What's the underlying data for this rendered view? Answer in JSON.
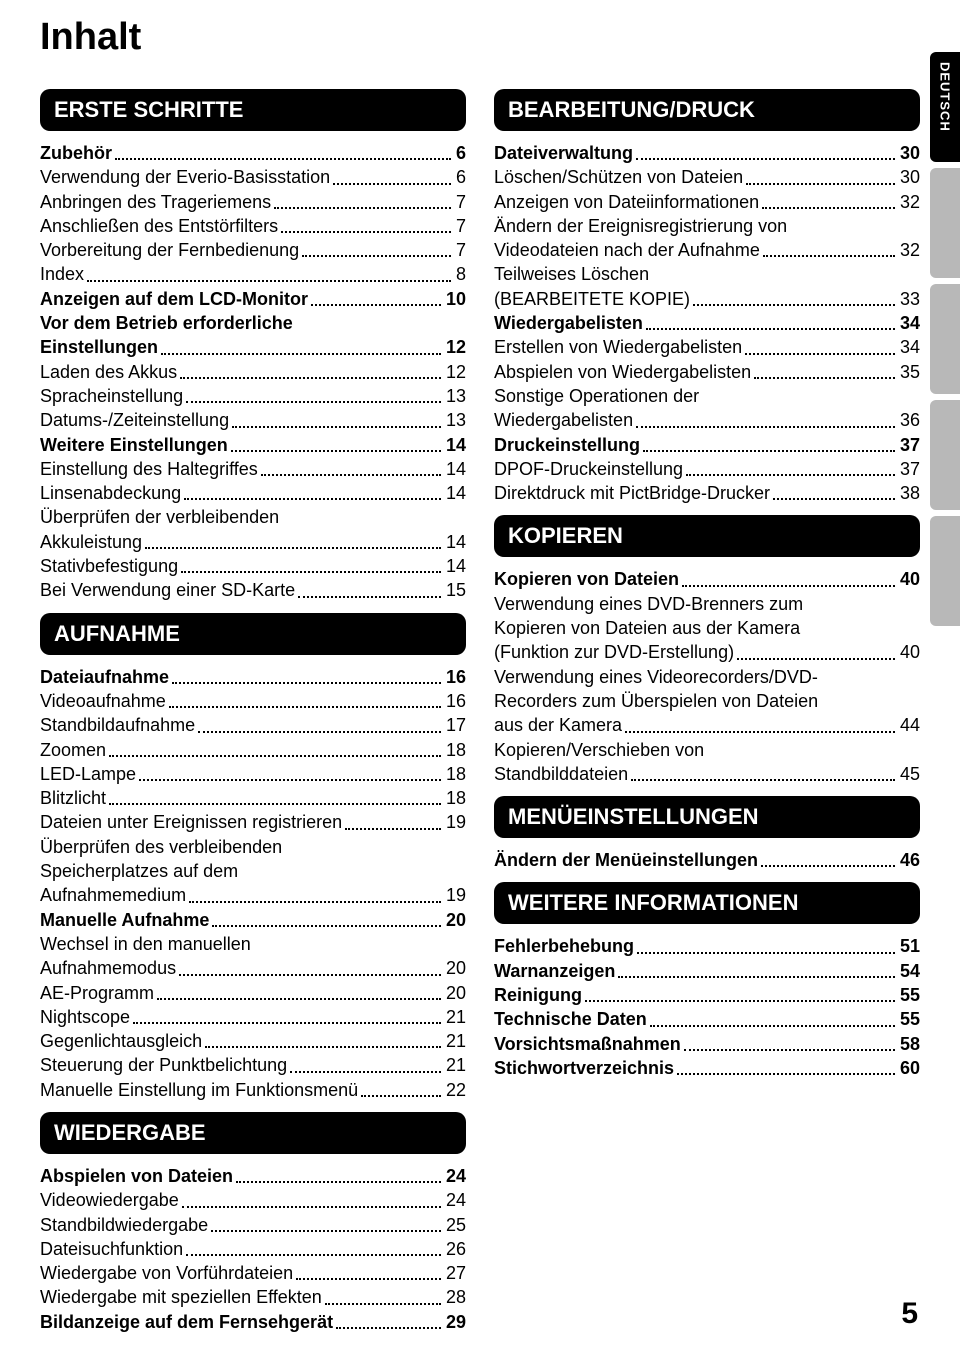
{
  "title": "Inhalt",
  "page_number": "5",
  "side_tabs": {
    "active_label": "DEUTSCH",
    "colors": {
      "active": "#000000",
      "dim": "#b8b8b8"
    }
  },
  "left_column": [
    {
      "type": "heading",
      "label": "ERSTE SCHRITTE"
    },
    {
      "type": "entry",
      "bold": true,
      "label": "Zubehör",
      "page": "6"
    },
    {
      "type": "entry",
      "label": "Verwendung der Everio-Basisstation",
      "page": "6"
    },
    {
      "type": "entry",
      "label": "Anbringen des Trageriemens",
      "page": "7"
    },
    {
      "type": "entry",
      "label": "Anschließen des Entstörfilters",
      "page": "7"
    },
    {
      "type": "entry",
      "label": "Vorbereitung der Fernbedienung",
      "page": "7"
    },
    {
      "type": "entry",
      "label": "Index",
      "page": "8"
    },
    {
      "type": "entry",
      "bold": true,
      "label": "Anzeigen auf dem LCD-Monitor",
      "page": "10"
    },
    {
      "type": "entry-multi",
      "bold": true,
      "lines": [
        "Vor dem Betrieb erforderliche"
      ],
      "last": "Einstellungen",
      "page": "12"
    },
    {
      "type": "entry",
      "label": "Laden des Akkus",
      "page": "12"
    },
    {
      "type": "entry",
      "label": "Spracheinstellung",
      "page": "13"
    },
    {
      "type": "entry",
      "label": "Datums-/Zeiteinstellung",
      "page": "13"
    },
    {
      "type": "entry",
      "bold": true,
      "label": "Weitere Einstellungen",
      "page": "14"
    },
    {
      "type": "entry",
      "label": "Einstellung des Haltegriffes",
      "page": "14"
    },
    {
      "type": "entry",
      "label": "Linsenabdeckung",
      "page": "14"
    },
    {
      "type": "entry-multi",
      "lines": [
        "Überprüfen der verbleibenden"
      ],
      "last": "Akkuleistung",
      "page": "14"
    },
    {
      "type": "entry",
      "label": "Stativbefestigung",
      "page": "14"
    },
    {
      "type": "entry",
      "label": "Bei Verwendung einer SD-Karte",
      "page": "15"
    },
    {
      "type": "heading",
      "label": "AUFNAHME"
    },
    {
      "type": "entry",
      "bold": true,
      "label": "Dateiaufnahme",
      "page": "16"
    },
    {
      "type": "entry",
      "label": "Videoaufnahme",
      "page": "16"
    },
    {
      "type": "entry",
      "label": "Standbildaufnahme",
      "page": "17"
    },
    {
      "type": "entry",
      "label": "Zoomen",
      "page": "18"
    },
    {
      "type": "entry",
      "label": "LED-Lampe",
      "page": "18"
    },
    {
      "type": "entry",
      "label": "Blitzlicht",
      "page": "18"
    },
    {
      "type": "entry",
      "label": "Dateien unter Ereignissen registrieren",
      "page": "19"
    },
    {
      "type": "entry-multi",
      "lines": [
        "Überprüfen des verbleibenden",
        "Speicherplatzes auf dem"
      ],
      "last": "Aufnahmemedium",
      "page": "19"
    },
    {
      "type": "entry",
      "bold": true,
      "label": "Manuelle Aufnahme",
      "page": "20"
    },
    {
      "type": "entry-multi",
      "lines": [
        "Wechsel in den manuellen"
      ],
      "last": "Aufnahmemodus",
      "page": "20"
    },
    {
      "type": "entry",
      "label": "AE-Programm",
      "page": "20"
    },
    {
      "type": "entry",
      "label": "Nightscope",
      "page": "21"
    },
    {
      "type": "entry",
      "label": "Gegenlichtausgleich",
      "page": "21"
    },
    {
      "type": "entry",
      "label": "Steuerung der Punktbelichtung",
      "page": "21"
    },
    {
      "type": "entry",
      "label": "Manuelle Einstellung im Funktionsmenü",
      "page": "22"
    },
    {
      "type": "heading",
      "label": "WIEDERGABE"
    },
    {
      "type": "entry",
      "bold": true,
      "label": "Abspielen von Dateien",
      "page": "24"
    },
    {
      "type": "entry",
      "label": "Videowiedergabe",
      "page": "24"
    },
    {
      "type": "entry",
      "label": "Standbildwiedergabe",
      "page": "25"
    },
    {
      "type": "entry",
      "label": "Dateisuchfunktion",
      "page": "26"
    },
    {
      "type": "entry",
      "label": "Wiedergabe von Vorführdateien",
      "page": "27"
    },
    {
      "type": "entry",
      "label": "Wiedergabe mit speziellen Effekten",
      "page": "28"
    },
    {
      "type": "entry",
      "bold": true,
      "label": "Bildanzeige auf dem Fernsehgerät",
      "page": "29"
    }
  ],
  "right_column": [
    {
      "type": "heading",
      "label": "BEARBEITUNG/DRUCK"
    },
    {
      "type": "entry",
      "bold": true,
      "label": "Dateiverwaltung",
      "page": "30"
    },
    {
      "type": "entry",
      "label": "Löschen/Schützen von Dateien",
      "page": "30"
    },
    {
      "type": "entry",
      "label": "Anzeigen von Dateiinformationen",
      "page": "32"
    },
    {
      "type": "entry-multi",
      "lines": [
        "Ändern der Ereignisregistrierung von"
      ],
      "last": "Videodateien nach der Aufnahme",
      "page": "32"
    },
    {
      "type": "entry-multi",
      "lines": [
        "Teilweises Löschen"
      ],
      "last": "(BEARBEITETE KOPIE)",
      "page": "33"
    },
    {
      "type": "entry",
      "bold": true,
      "label": "Wiedergabelisten",
      "page": "34"
    },
    {
      "type": "entry",
      "label": "Erstellen von Wiedergabelisten",
      "page": "34"
    },
    {
      "type": "entry",
      "label": "Abspielen von Wiedergabelisten",
      "page": "35"
    },
    {
      "type": "entry-multi",
      "lines": [
        "Sonstige Operationen der"
      ],
      "last": "Wiedergabelisten",
      "page": "36"
    },
    {
      "type": "entry",
      "bold": true,
      "label": "Druckeinstellung",
      "page": "37"
    },
    {
      "type": "entry",
      "label": "DPOF-Druckeinstellung",
      "page": "37"
    },
    {
      "type": "entry",
      "label": "Direktdruck mit PictBridge-Drucker",
      "page": "38"
    },
    {
      "type": "heading",
      "label": "KOPIEREN"
    },
    {
      "type": "entry",
      "bold": true,
      "label": "Kopieren von Dateien",
      "page": "40"
    },
    {
      "type": "entry-multi",
      "lines": [
        "Verwendung eines DVD-Brenners zum",
        "Kopieren von Dateien aus der Kamera"
      ],
      "last": "(Funktion zur DVD-Erstellung)",
      "page": "40"
    },
    {
      "type": "entry-multi",
      "lines": [
        "Verwendung eines Videorecorders/DVD-",
        "Recorders zum Überspielen von Dateien"
      ],
      "last": "aus der Kamera",
      "page": "44"
    },
    {
      "type": "entry-multi",
      "lines": [
        "Kopieren/Verschieben von"
      ],
      "last": "Standbilddateien",
      "page": "45"
    },
    {
      "type": "heading",
      "label": "MENÜEINSTELLUNGEN"
    },
    {
      "type": "entry",
      "bold": true,
      "label": "Ändern der Menüeinstellungen",
      "page": "46"
    },
    {
      "type": "heading",
      "label": "WEITERE INFORMATIONEN"
    },
    {
      "type": "entry",
      "bold": true,
      "label": "Fehlerbehebung",
      "page": "51"
    },
    {
      "type": "entry",
      "bold": true,
      "label": "Warnanzeigen",
      "page": "54"
    },
    {
      "type": "entry",
      "bold": true,
      "label": "Reinigung",
      "page": "55"
    },
    {
      "type": "entry",
      "bold": true,
      "label": "Technische Daten",
      "page": "55"
    },
    {
      "type": "entry",
      "bold": true,
      "label": "Vorsichtsmaßnahmen",
      "page": "58"
    },
    {
      "type": "entry",
      "bold": true,
      "label": "Stichwortverzeichnis",
      "page": "60"
    }
  ]
}
